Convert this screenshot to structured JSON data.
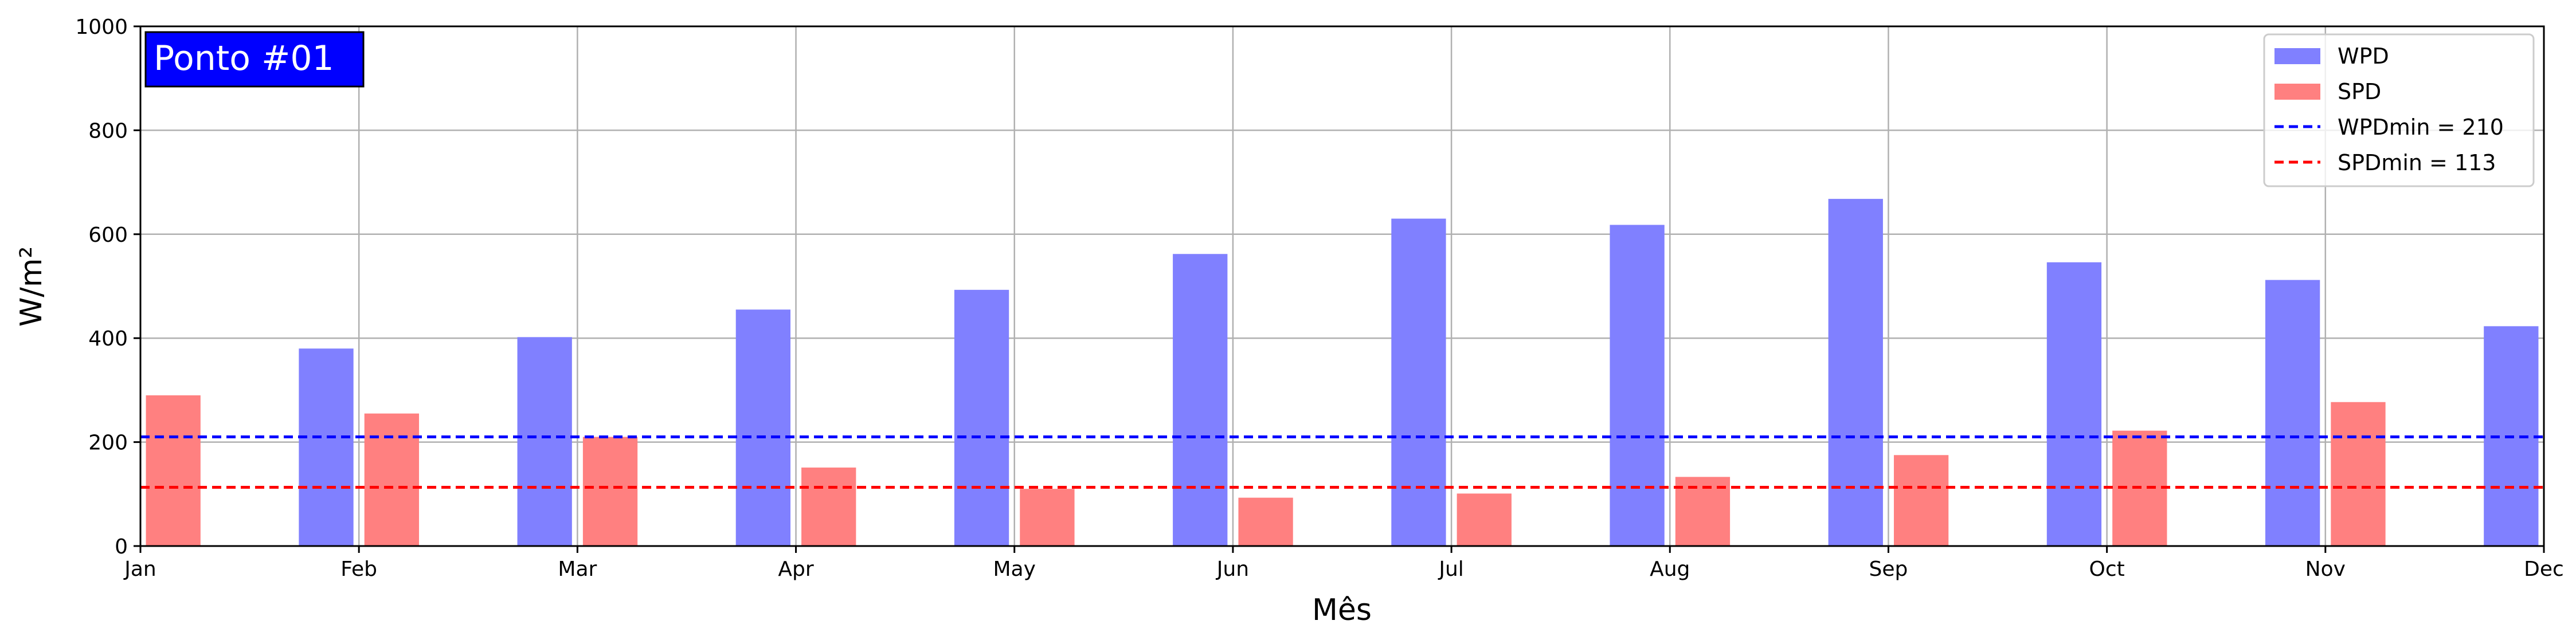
{
  "chart_data": {
    "type": "bar",
    "title": "",
    "annotation": "Ponto #01",
    "xlabel": "Mês",
    "ylabel": "W/m²",
    "ylim": [
      0,
      1000
    ],
    "yticks": [
      0,
      200,
      400,
      600,
      800,
      1000
    ],
    "xlim": [
      0,
      11
    ],
    "categories": [
      "Jan",
      "Feb",
      "Mar",
      "Apr",
      "May",
      "Jun",
      "Jul",
      "Aug",
      "Sep",
      "Oct",
      "Nov",
      "Dec"
    ],
    "grid": true,
    "legend_position": "top-right",
    "series": [
      {
        "name": "WPD",
        "color": "#8080ff",
        "x": [
          1,
          2,
          3,
          4,
          5,
          6,
          7,
          8,
          9,
          10,
          11
        ],
        "values": [
          380,
          402,
          455,
          493,
          562,
          630,
          618,
          668,
          546,
          512,
          423
        ]
      },
      {
        "name": "SPD",
        "color": "#ff8080",
        "x": [
          0,
          1,
          2,
          3,
          4,
          5,
          6,
          7,
          8,
          9,
          10
        ],
        "values": [
          290,
          255,
          210,
          151,
          110,
          93,
          101,
          133,
          175,
          222,
          277
        ]
      }
    ],
    "reference_lines": [
      {
        "label": "WPDmin = 210",
        "value": 210,
        "color": "#0000ff"
      },
      {
        "label": "SPDmin = 113",
        "value": 113,
        "color": "#ff0000"
      }
    ]
  }
}
